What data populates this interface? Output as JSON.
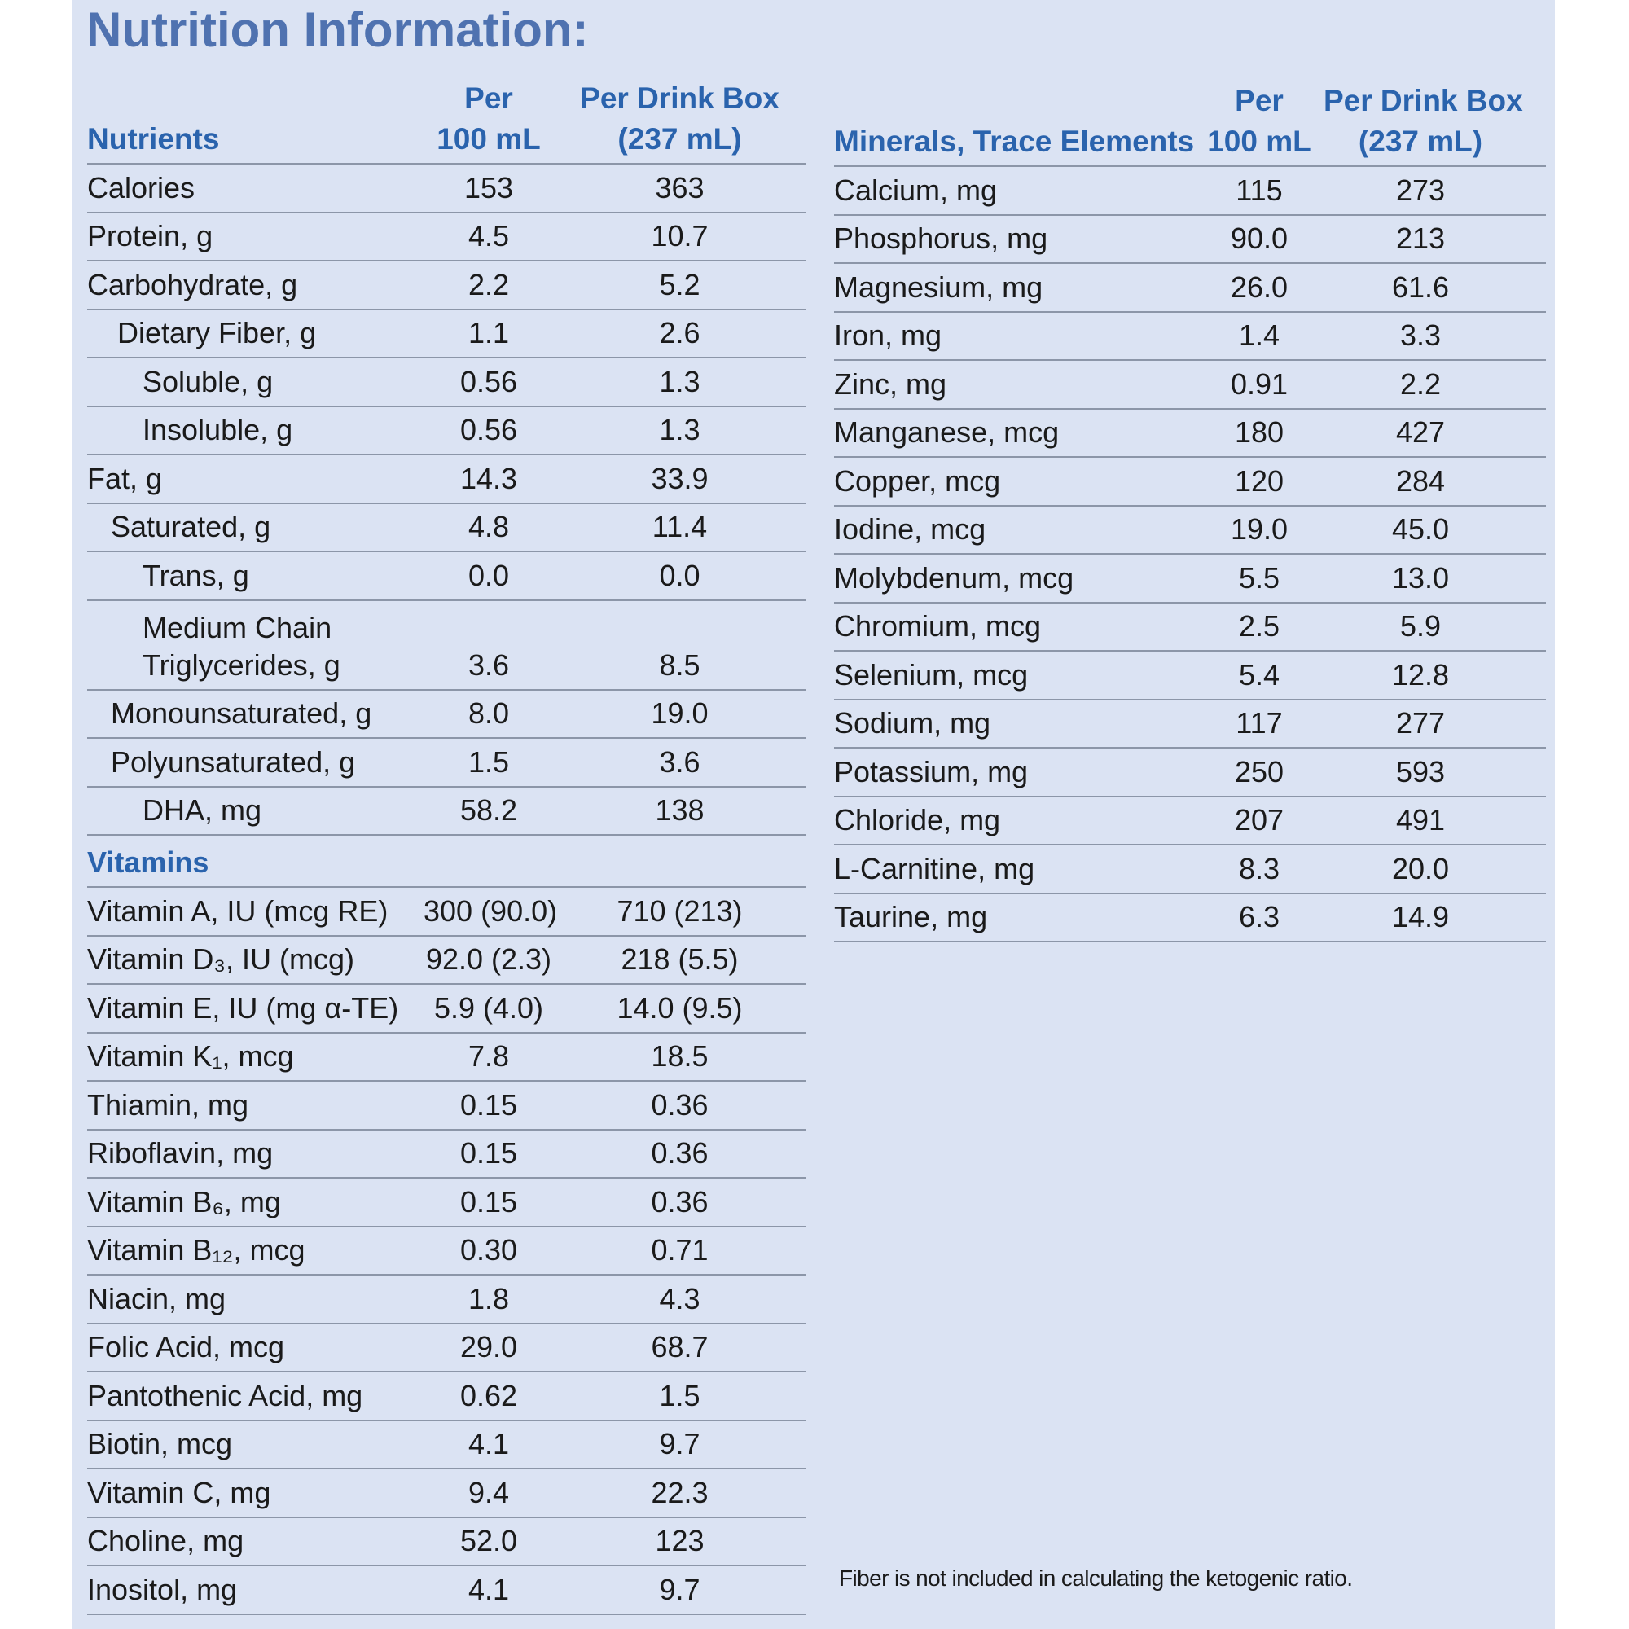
{
  "title": "Nutrition Information:",
  "left_table": {
    "header": {
      "name": "Nutrients",
      "col1": [
        "Per",
        "100 mL"
      ],
      "col2": [
        "Per Drink Box",
        "(237 mL)"
      ]
    },
    "rows": [
      [
        "Calories",
        "153",
        "363"
      ],
      [
        "Protein, g",
        "4.5",
        "10.7"
      ],
      [
        "Carbohydrate, g",
        "2.2",
        "5.2"
      ],
      [
        "Dietary Fiber, g",
        "1.1",
        "2.6"
      ],
      [
        "Soluble, g",
        "0.56",
        "1.3"
      ],
      [
        "Insoluble, g",
        "0.56",
        "1.3"
      ],
      [
        "Fat, g",
        "14.3",
        "33.9"
      ],
      [
        "Saturated, g",
        "4.8",
        "11.4"
      ],
      [
        "Trans, g",
        "0.0",
        "0.0"
      ],
      [
        "Medium Chain Triglycerides, g",
        "3.6",
        "8.5"
      ],
      [
        "Monounsaturated, g",
        "8.0",
        "19.0"
      ],
      [
        "Polyunsaturated, g",
        "1.5",
        "3.6"
      ],
      [
        "DHA, mg",
        "58.2",
        "138"
      ]
    ],
    "section": "Vitamins",
    "section_rows": [
      [
        "Vitamin A, IU (mcg RE)",
        "300 (90.0)",
        "710 (213)"
      ],
      [
        "Vitamin D₃, IU (mcg)",
        "92.0 (2.3)",
        "218 (5.5)"
      ],
      [
        "Vitamin E, IU (mg α-TE)",
        "5.9 (4.0)",
        "14.0 (9.5)"
      ],
      [
        "Vitamin K₁, mcg",
        "7.8",
        "18.5"
      ],
      [
        "Thiamin, mg",
        "0.15",
        "0.36"
      ],
      [
        "Riboflavin, mg",
        "0.15",
        "0.36"
      ],
      [
        "Vitamin B₆, mg",
        "0.15",
        "0.36"
      ],
      [
        "Vitamin B₁₂, mcg",
        "0.30",
        "0.71"
      ],
      [
        "Niacin, mg",
        "1.8",
        "4.3"
      ],
      [
        "Folic Acid, mcg",
        "29.0",
        "68.7"
      ],
      [
        "Pantothenic Acid, mg",
        "0.62",
        "1.5"
      ],
      [
        "Biotin, mcg",
        "4.1",
        "9.7"
      ],
      [
        "Vitamin C, mg",
        "9.4",
        "22.3"
      ],
      [
        "Choline, mg",
        "52.0",
        "123"
      ],
      [
        "Inositol, mg",
        "4.1",
        "9.7"
      ]
    ]
  },
  "right_table": {
    "header": {
      "name": "Minerals, Trace Elements",
      "col1": [
        "Per",
        "100 mL"
      ],
      "col2": [
        "Per Drink Box",
        "(237 mL)"
      ]
    },
    "rows": [
      [
        "Calcium, mg",
        "115",
        "273"
      ],
      [
        "Phosphorus, mg",
        "90.0",
        "213"
      ],
      [
        "Magnesium, mg",
        "26.0",
        "61.6"
      ],
      [
        "Iron, mg",
        "1.4",
        "3.3"
      ],
      [
        "Zinc, mg",
        "0.91",
        "2.2"
      ],
      [
        "Manganese, mcg",
        "180",
        "427"
      ],
      [
        "Copper, mcg",
        "120",
        "284"
      ],
      [
        "Iodine, mcg",
        "19.0",
        "45.0"
      ],
      [
        "Molybdenum, mcg",
        "5.5",
        "13.0"
      ],
      [
        "Chromium, mcg",
        "2.5",
        "5.9"
      ],
      [
        "Selenium, mcg",
        "5.4",
        "12.8"
      ],
      [
        "Sodium, mg",
        "117",
        "277"
      ],
      [
        "Potassium, mg",
        "250",
        "593"
      ],
      [
        "Chloride, mg",
        "207",
        "491"
      ],
      [
        "L-Carnitine, mg",
        "8.3",
        "20.0"
      ],
      [
        "Taurine, mg",
        "6.3",
        "14.9"
      ]
    ]
  },
  "footnote": "Fiber is not included in calculating the ketogenic ratio."
}
